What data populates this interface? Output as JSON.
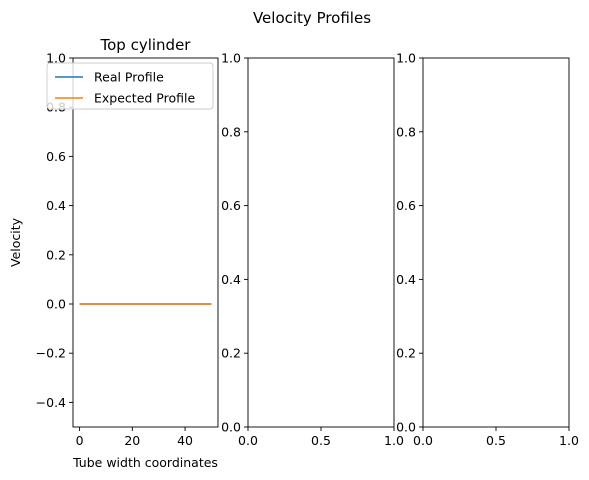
{
  "figure": {
    "suptitle": "Velocity Profiles"
  },
  "chart_data": [
    {
      "type": "line",
      "title": "Top cylinder",
      "xlabel": "Tube width coordinates",
      "ylabel": "Velocity",
      "xlim": [
        -2.5,
        52.5
      ],
      "ylim": [
        -0.5,
        1.0
      ],
      "xticks": [
        0,
        20,
        40
      ],
      "xtick_labels": [
        "0",
        "20",
        "40"
      ],
      "yticks": [
        -0.4,
        -0.2,
        0.0,
        0.2,
        0.4,
        0.6,
        0.8,
        1.0
      ],
      "ytick_labels": [
        "−0.4",
        "−0.2",
        "0.0",
        "0.2",
        "0.4",
        "0.6",
        "0.8",
        "1.0"
      ],
      "legend_position": "upper-left",
      "grid": false,
      "series": [
        {
          "name": "Real Profile",
          "color": "#1f77b4",
          "x": [
            0,
            50
          ],
          "y": [
            0,
            0
          ]
        },
        {
          "name": "Expected Profile",
          "color": "#ff7f0e",
          "x": [
            0,
            50
          ],
          "y": [
            0,
            0
          ]
        }
      ]
    },
    {
      "type": "line",
      "title": "",
      "xlabel": "",
      "ylabel": "",
      "xlim": [
        0,
        1
      ],
      "ylim": [
        0,
        1
      ],
      "xticks": [
        0,
        0.5,
        1
      ],
      "xtick_labels": [
        "0.0",
        "0.5",
        "1.0"
      ],
      "yticks": [
        0,
        0.2,
        0.4,
        0.6,
        0.8,
        1.0
      ],
      "ytick_labels": [
        "0.0",
        "0.2",
        "0.4",
        "0.6",
        "0.8",
        "1.0"
      ],
      "grid": false,
      "series": []
    },
    {
      "type": "line",
      "title": "",
      "xlabel": "",
      "ylabel": "",
      "xlim": [
        0,
        1
      ],
      "ylim": [
        0,
        1
      ],
      "xticks": [
        0,
        0.5,
        1
      ],
      "xtick_labels": [
        "0.0",
        "0.5",
        "1.0"
      ],
      "yticks": [
        0,
        0.2,
        0.4,
        0.6,
        0.8,
        1.0
      ],
      "ytick_labels": [
        "0.0",
        "0.2",
        "0.4",
        "0.6",
        "0.8",
        "1.0"
      ],
      "grid": false,
      "series": []
    }
  ]
}
